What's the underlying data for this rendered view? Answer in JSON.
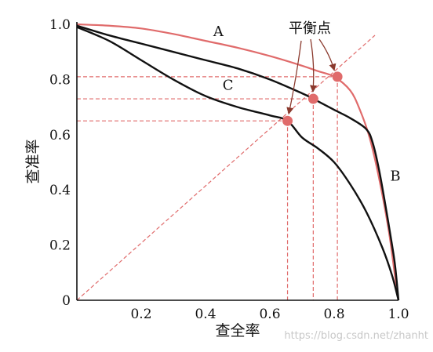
{
  "chart_data": {
    "type": "line",
    "xlabel": "查全率",
    "ylabel": "查准率",
    "xlim": [
      0,
      1.0
    ],
    "ylim": [
      0,
      1.0
    ],
    "x_ticks": [
      "0.2",
      "0.4",
      "0.6",
      "0.8",
      "1.0"
    ],
    "y_ticks": [
      "0",
      "0.2",
      "0.4",
      "0.6",
      "0.8",
      "1.0"
    ],
    "grid": false,
    "series": [
      {
        "name": "A",
        "color": "#e06b6b",
        "points": [
          [
            0,
            1.0
          ],
          [
            0.1,
            0.995
          ],
          [
            0.2,
            0.985
          ],
          [
            0.3,
            0.965
          ],
          [
            0.4,
            0.94
          ],
          [
            0.5,
            0.915
          ],
          [
            0.6,
            0.885
          ],
          [
            0.7,
            0.85
          ],
          [
            0.75,
            0.83
          ],
          [
            0.8,
            0.81
          ],
          [
            0.85,
            0.76
          ],
          [
            0.88,
            0.69
          ],
          [
            0.91,
            0.59
          ],
          [
            0.94,
            0.44
          ],
          [
            0.97,
            0.25
          ],
          [
            0.99,
            0.08
          ],
          [
            1.0,
            0.0
          ]
        ]
      },
      {
        "name": "B",
        "color": "#111111",
        "points": [
          [
            0,
            0.995
          ],
          [
            0.1,
            0.96
          ],
          [
            0.2,
            0.93
          ],
          [
            0.3,
            0.9
          ],
          [
            0.4,
            0.87
          ],
          [
            0.5,
            0.84
          ],
          [
            0.6,
            0.8
          ],
          [
            0.7,
            0.75
          ],
          [
            0.735,
            0.73
          ],
          [
            0.8,
            0.69
          ],
          [
            0.85,
            0.66
          ],
          [
            0.9,
            0.62
          ],
          [
            0.92,
            0.57
          ],
          [
            0.94,
            0.47
          ],
          [
            0.96,
            0.34
          ],
          [
            0.98,
            0.2
          ],
          [
            0.99,
            0.12
          ],
          [
            1.0,
            0.0
          ]
        ]
      },
      {
        "name": "C",
        "color": "#111111",
        "points": [
          [
            0,
            0.99
          ],
          [
            0.1,
            0.94
          ],
          [
            0.2,
            0.87
          ],
          [
            0.3,
            0.8
          ],
          [
            0.4,
            0.74
          ],
          [
            0.5,
            0.7
          ],
          [
            0.6,
            0.67
          ],
          [
            0.655,
            0.65
          ],
          [
            0.7,
            0.59
          ],
          [
            0.75,
            0.55
          ],
          [
            0.8,
            0.5
          ],
          [
            0.85,
            0.42
          ],
          [
            0.9,
            0.32
          ],
          [
            0.95,
            0.19
          ],
          [
            0.98,
            0.09
          ],
          [
            1.0,
            0.0
          ]
        ]
      }
    ],
    "reference_line": {
      "type": "diagonal",
      "from": [
        0,
        0
      ],
      "to": [
        1.0,
        1.0
      ],
      "style": "dashed",
      "color": "#e06b6b"
    },
    "break_even_points": [
      {
        "series": "A",
        "x": 0.81,
        "y": 0.81
      },
      {
        "series": "B",
        "x": 0.735,
        "y": 0.73
      },
      {
        "series": "C",
        "x": 0.655,
        "y": 0.65
      }
    ],
    "annotation": "平衡点",
    "watermark": "https://blog.csdn.net/zhanht"
  }
}
